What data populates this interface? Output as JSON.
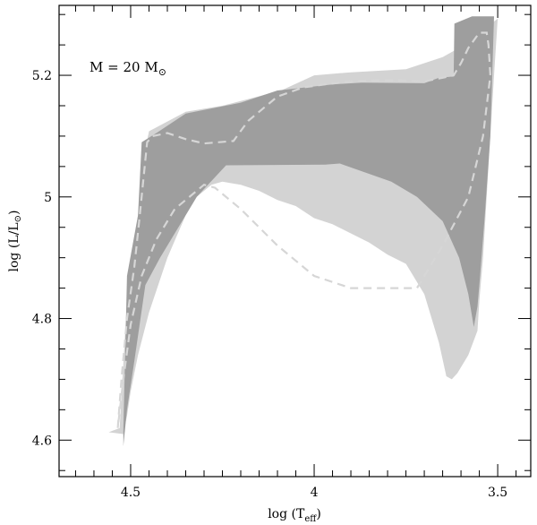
{
  "chart_data": {
    "type": "area",
    "annotation": {
      "prefix": "M = 20 M",
      "subscript": "⊙"
    },
    "xlabel": {
      "main": "log (T",
      "sub": "eff",
      "close": ")"
    },
    "ylabel": {
      "main": "log (L",
      "mid": "/L",
      "sub": "⊙",
      "close": ")"
    },
    "xlim": [
      4.695,
      3.41
    ],
    "ylim": [
      4.54,
      5.315
    ],
    "xticks": [
      {
        "value": 4.5,
        "label": "4.5"
      },
      {
        "value": 4.0,
        "label": "4"
      },
      {
        "value": 3.5,
        "label": "3.5"
      }
    ],
    "yticks": [
      {
        "value": 4.6,
        "label": "4.6"
      },
      {
        "value": 4.8,
        "label": "4.8"
      },
      {
        "value": 5.0,
        "label": "5"
      },
      {
        "value": 5.2,
        "label": "5.2"
      }
    ],
    "x_minor_step": 0.05,
    "y_minor_step": 0.05,
    "series": [
      {
        "style": "light-band",
        "color": "#d3d3d3",
        "points": [
          [
            4.56,
            4.613
          ],
          [
            4.53,
            4.62
          ],
          [
            4.51,
            4.83
          ],
          [
            4.48,
            4.97
          ],
          [
            4.465,
            5.065
          ],
          [
            4.45,
            5.108
          ],
          [
            4.35,
            5.14
          ],
          [
            4.25,
            5.15
          ],
          [
            4.09,
            5.175
          ],
          [
            4.0,
            5.2
          ],
          [
            3.9,
            5.205
          ],
          [
            3.75,
            5.21
          ],
          [
            3.65,
            5.23
          ],
          [
            3.62,
            5.24
          ],
          [
            3.6,
            5.25
          ],
          [
            3.55,
            5.27
          ],
          [
            3.5,
            5.293
          ],
          [
            3.51,
            5.2
          ],
          [
            3.525,
            5.05
          ],
          [
            3.54,
            4.9
          ],
          [
            3.55,
            4.83
          ],
          [
            3.555,
            4.78
          ],
          [
            3.58,
            4.74
          ],
          [
            3.61,
            4.71
          ],
          [
            3.625,
            4.7
          ],
          [
            3.64,
            4.705
          ],
          [
            3.66,
            4.76
          ],
          [
            3.7,
            4.84
          ],
          [
            3.75,
            4.89
          ],
          [
            3.8,
            4.905
          ],
          [
            3.85,
            4.925
          ],
          [
            3.9,
            4.94
          ],
          [
            3.95,
            4.955
          ],
          [
            4.0,
            4.965
          ],
          [
            4.05,
            4.985
          ],
          [
            4.1,
            4.995
          ],
          [
            4.15,
            5.01
          ],
          [
            4.2,
            5.02
          ],
          [
            4.25,
            5.025
          ],
          [
            4.28,
            5.02
          ],
          [
            4.32,
            5.0
          ],
          [
            4.35,
            4.97
          ],
          [
            4.4,
            4.9
          ],
          [
            4.45,
            4.81
          ],
          [
            4.48,
            4.74
          ],
          [
            4.5,
            4.68
          ],
          [
            4.51,
            4.64
          ],
          [
            4.52,
            4.61
          ]
        ]
      },
      {
        "style": "dark-band",
        "color": "#9e9e9e",
        "points": [
          [
            4.52,
            4.615
          ],
          [
            4.51,
            4.87
          ],
          [
            4.48,
            4.97
          ],
          [
            4.47,
            5.09
          ],
          [
            4.43,
            5.105
          ],
          [
            4.35,
            5.137
          ],
          [
            4.2,
            5.155
          ],
          [
            4.1,
            5.175
          ],
          [
            3.95,
            5.185
          ],
          [
            3.87,
            5.188
          ],
          [
            3.7,
            5.187
          ],
          [
            3.66,
            5.196
          ],
          [
            3.62,
            5.198
          ],
          [
            3.618,
            5.285
          ],
          [
            3.57,
            5.297
          ],
          [
            3.51,
            5.297
          ],
          [
            3.52,
            5.1
          ],
          [
            3.535,
            4.97
          ],
          [
            3.548,
            4.87
          ],
          [
            3.555,
            4.82
          ],
          [
            3.565,
            4.786
          ],
          [
            3.58,
            4.84
          ],
          [
            3.605,
            4.9
          ],
          [
            3.65,
            4.96
          ],
          [
            3.72,
            5.0
          ],
          [
            3.79,
            5.025
          ],
          [
            3.93,
            5.055
          ],
          [
            3.97,
            5.053
          ],
          [
            4.24,
            5.052
          ],
          [
            4.32,
            5.0
          ],
          [
            4.34,
            4.98
          ],
          [
            4.42,
            4.9
          ],
          [
            4.46,
            4.855
          ],
          [
            4.49,
            4.73
          ],
          [
            4.51,
            4.65
          ],
          [
            4.52,
            4.59
          ]
        ]
      }
    ],
    "track": {
      "style": "dashed",
      "color": "#d6d6d6",
      "points": [
        [
          4.535,
          4.62
        ],
        [
          4.525,
          4.7
        ],
        [
          4.51,
          4.8
        ],
        [
          4.49,
          4.885
        ],
        [
          4.475,
          4.97
        ],
        [
          4.455,
          5.09
        ],
        [
          4.44,
          5.1
        ],
        [
          4.4,
          5.105
        ],
        [
          4.35,
          5.095
        ],
        [
          4.3,
          5.088
        ],
        [
          4.22,
          5.092
        ],
        [
          4.18,
          5.125
        ],
        [
          4.1,
          5.165
        ],
        [
          4.03,
          5.18
        ],
        [
          3.97,
          5.185
        ],
        [
          3.9,
          5.19
        ],
        [
          3.8,
          5.192
        ],
        [
          3.7,
          5.19
        ],
        [
          3.65,
          5.196
        ],
        [
          3.62,
          5.2
        ],
        [
          3.6,
          5.22
        ],
        [
          3.58,
          5.245
        ],
        [
          3.55,
          5.27
        ],
        [
          3.53,
          5.27
        ],
        [
          3.525,
          5.25
        ]
      ],
      "return_points": [
        [
          3.525,
          5.25
        ],
        [
          3.52,
          5.2
        ],
        [
          3.54,
          5.1
        ],
        [
          3.58,
          5.0
        ],
        [
          3.65,
          4.92
        ],
        [
          3.72,
          4.85
        ],
        [
          3.8,
          4.85
        ],
        [
          3.9,
          4.85
        ],
        [
          4.0,
          4.87
        ],
        [
          4.1,
          4.92
        ],
        [
          4.2,
          4.98
        ],
        [
          4.27,
          5.015
        ],
        [
          4.3,
          5.02
        ],
        [
          4.33,
          5.005
        ],
        [
          4.38,
          4.98
        ],
        [
          4.43,
          4.93
        ],
        [
          4.47,
          4.87
        ],
        [
          4.5,
          4.79
        ],
        [
          4.52,
          4.7
        ],
        [
          4.535,
          4.62
        ]
      ]
    }
  }
}
